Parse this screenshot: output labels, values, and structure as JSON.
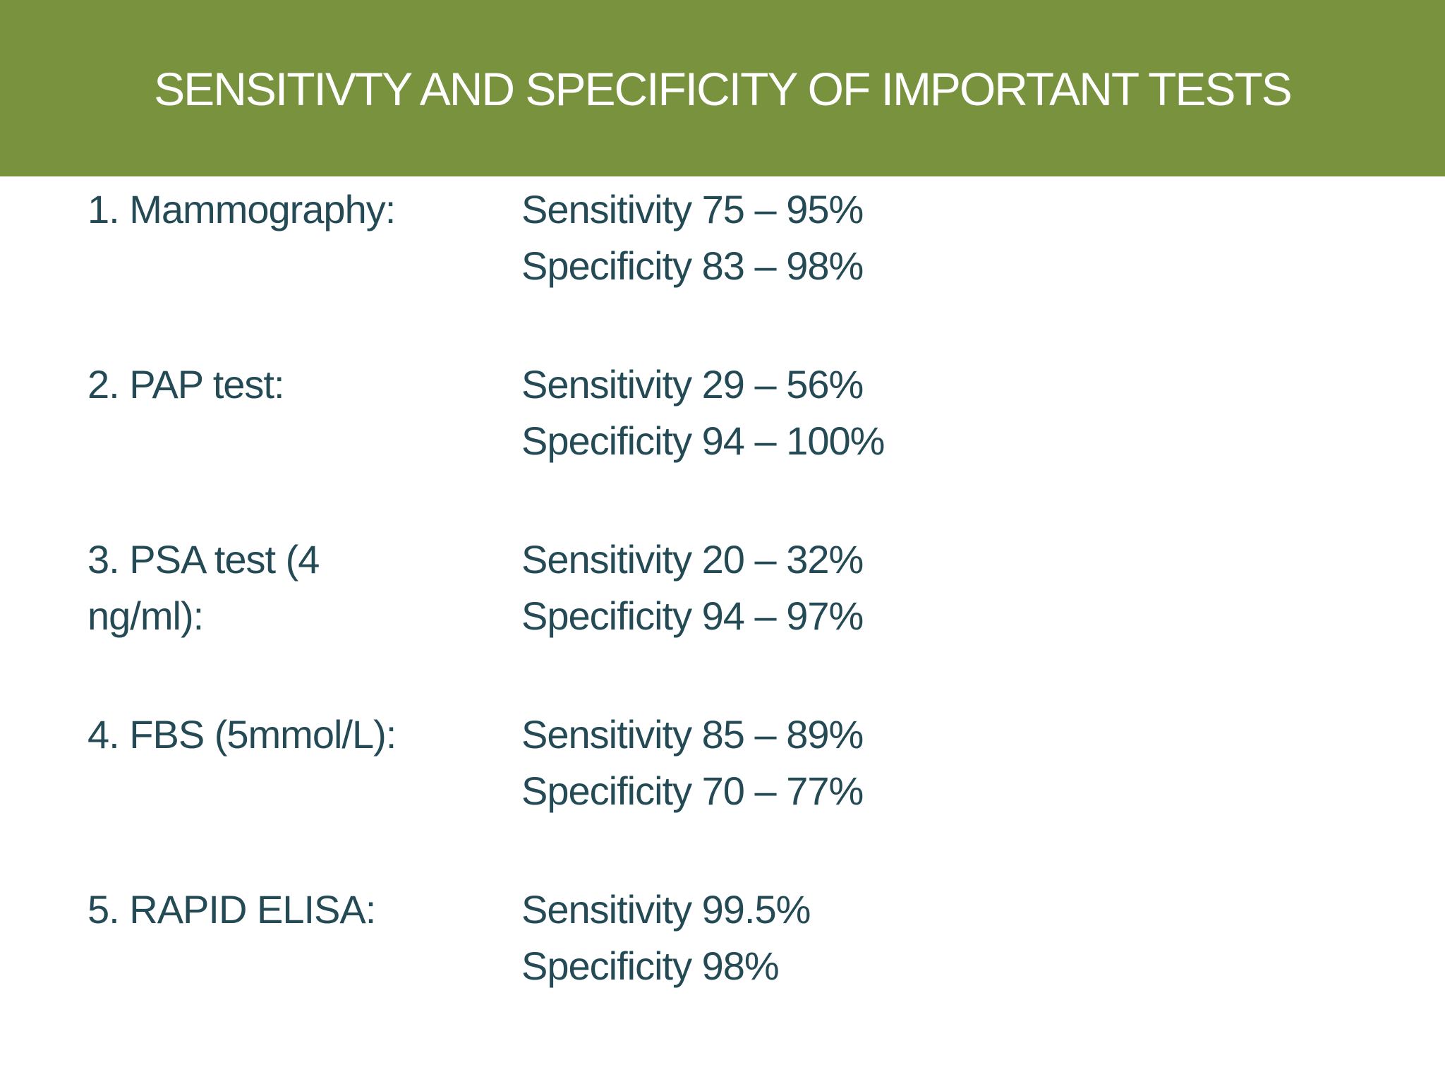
{
  "slide": {
    "title": "SENSITIVTY AND SPECIFICITY OF IMPORTANT  TESTS",
    "colors": {
      "header_background": "#78923d",
      "title_text": "#ffffff",
      "body_text": "#244a55"
    },
    "tests": [
      {
        "name": "1. Mammography:",
        "sensitivity": "Sensitivity 75 – 95%",
        "specificity": "Specificity 83 – 98%"
      },
      {
        "name": "2. PAP test:",
        "sensitivity": "Sensitivity 29 – 56%",
        "specificity": "Specificity 94 – 100%"
      },
      {
        "name": "3. PSA test (4 ng/ml):",
        "sensitivity": "Sensitivity 20 – 32%",
        "specificity": "Specificity 94 – 97%"
      },
      {
        "name": "4. FBS (5mmol/L):",
        "sensitivity": "Sensitivity 85 – 89%",
        "specificity": "Specificity 70 – 77%"
      },
      {
        "name": "5. RAPID ELISA:",
        "sensitivity": "Sensitivity 99.5%",
        "specificity": "Specificity 98%"
      }
    ]
  }
}
